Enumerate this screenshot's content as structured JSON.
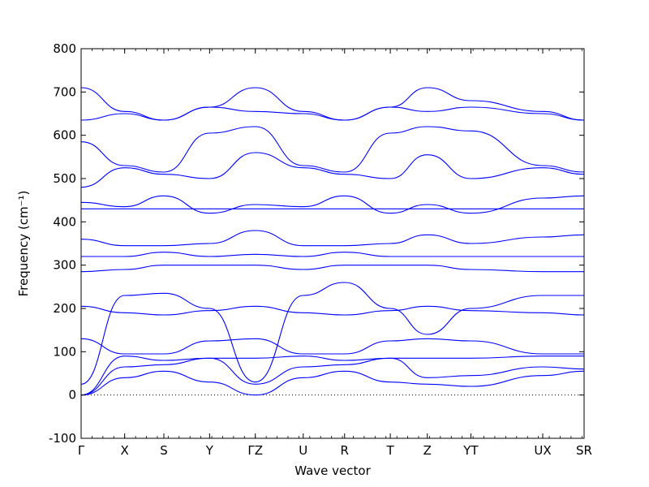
{
  "chart_data": {
    "type": "line",
    "title": "",
    "xlabel": "Wave vector",
    "ylabel": "Frequency (cm⁻¹)",
    "ylim": [
      -100,
      800
    ],
    "yticks": [
      -100,
      0,
      100,
      200,
      300,
      400,
      500,
      600,
      700,
      800
    ],
    "k_points": [
      "Γ",
      "X",
      "S",
      "Y",
      "ΓZ",
      "U",
      "R",
      "T",
      "Z",
      "YT",
      "UX",
      "SR"
    ],
    "k_positions": [
      0,
      1.0,
      1.9,
      2.95,
      4.0,
      5.1,
      6.05,
      7.1,
      7.95,
      8.95,
      10.6,
      11.55
    ],
    "zero_line": true,
    "line_color": "#0000ff",
    "grid": false,
    "legend": "none",
    "series": [
      {
        "x": [
          0,
          1.0,
          1.9,
          2.95,
          4.0,
          5.1,
          6.05,
          7.1,
          7.95,
          8.95,
          10.6,
          11.55
        ],
        "values": [
          0,
          40,
          55,
          30,
          0,
          40,
          55,
          30,
          25,
          20,
          45,
          55
        ]
      },
      {
        "x": [
          0,
          1.0,
          1.9,
          2.95,
          4.0,
          5.1,
          6.05,
          7.1,
          7.95,
          8.95,
          10.6,
          11.55
        ],
        "values": [
          0,
          65,
          70,
          85,
          25,
          65,
          70,
          85,
          40,
          45,
          65,
          60
        ]
      },
      {
        "x": [
          0,
          1.0,
          1.9,
          2.95,
          4.0,
          5.1,
          6.05,
          7.1,
          7.95,
          8.95,
          10.6,
          11.55
        ],
        "values": [
          0,
          90,
          80,
          85,
          85,
          90,
          80,
          85,
          85,
          85,
          90,
          90
        ]
      },
      {
        "x": [
          0,
          1.0,
          1.9,
          2.95,
          4.0,
          5.1,
          6.05,
          7.1,
          7.95,
          8.95,
          10.6,
          11.55
        ],
        "values": [
          130,
          95,
          95,
          125,
          130,
          95,
          95,
          125,
          130,
          125,
          95,
          95
        ]
      },
      {
        "x": [
          0,
          1.0,
          1.9,
          2.95,
          4.0,
          5.1,
          6.05,
          7.1,
          7.95,
          8.95,
          10.6,
          11.55
        ],
        "values": [
          205,
          190,
          185,
          195,
          205,
          190,
          185,
          195,
          205,
          195,
          190,
          185
        ]
      },
      {
        "x": [
          0,
          1.0,
          1.9,
          2.95,
          4.0,
          5.1,
          6.05,
          7.1,
          7.95,
          8.95,
          10.6,
          11.55
        ],
        "values": [
          25,
          230,
          235,
          200,
          30,
          230,
          260,
          200,
          140,
          200,
          230,
          230
        ]
      },
      {
        "x": [
          0,
          1.0,
          1.9,
          2.95,
          4.0,
          5.1,
          6.05,
          7.1,
          7.95,
          8.95,
          10.6,
          11.55
        ],
        "values": [
          285,
          290,
          300,
          300,
          300,
          290,
          300,
          300,
          300,
          290,
          285,
          285
        ]
      },
      {
        "x": [
          0,
          1.0,
          1.9,
          2.95,
          4.0,
          5.1,
          6.05,
          7.1,
          7.95,
          8.95,
          10.6,
          11.55
        ],
        "values": [
          320,
          320,
          330,
          320,
          325,
          320,
          330,
          320,
          320,
          320,
          320,
          320
        ]
      },
      {
        "x": [
          0,
          1.0,
          1.9,
          2.95,
          4.0,
          5.1,
          6.05,
          7.1,
          7.95,
          8.95,
          10.6,
          11.55
        ],
        "values": [
          360,
          345,
          345,
          350,
          380,
          345,
          345,
          350,
          370,
          350,
          365,
          370
        ]
      },
      {
        "x": [
          0,
          1.0,
          1.9,
          2.95,
          4.0,
          5.1,
          6.05,
          7.1,
          7.95,
          8.95,
          10.6,
          11.55
        ],
        "values": [
          430,
          430,
          430,
          430,
          430,
          430,
          430,
          430,
          430,
          430,
          430,
          430
        ]
      },
      {
        "x": [
          0,
          1.0,
          1.9,
          2.95,
          4.0,
          5.1,
          6.05,
          7.1,
          7.95,
          8.95,
          10.6,
          11.55
        ],
        "values": [
          445,
          435,
          460,
          420,
          440,
          435,
          460,
          420,
          440,
          420,
          455,
          460
        ]
      },
      {
        "x": [
          0,
          1.0,
          1.9,
          2.95,
          4.0,
          5.1,
          6.05,
          7.1,
          7.95,
          8.95,
          10.6,
          11.55
        ],
        "values": [
          480,
          525,
          510,
          500,
          560,
          525,
          510,
          500,
          555,
          500,
          525,
          510
        ]
      },
      {
        "x": [
          0,
          1.0,
          1.9,
          2.95,
          4.0,
          5.1,
          6.05,
          7.1,
          7.95,
          8.95,
          10.6,
          11.55
        ],
        "values": [
          585,
          530,
          515,
          605,
          620,
          530,
          515,
          605,
          620,
          610,
          530,
          515
        ]
      },
      {
        "x": [
          0,
          1.0,
          1.9,
          2.95,
          4.0,
          5.1,
          6.05,
          7.1,
          7.95,
          8.95,
          10.6,
          11.55
        ],
        "values": [
          635,
          650,
          635,
          665,
          655,
          650,
          635,
          665,
          655,
          665,
          650,
          635
        ]
      },
      {
        "x": [
          0,
          1.0,
          1.9,
          2.95,
          4.0,
          5.1,
          6.05,
          7.1,
          7.95,
          8.95,
          10.6,
          11.55
        ],
        "values": [
          710,
          655,
          635,
          665,
          710,
          655,
          635,
          665,
          710,
          680,
          655,
          635
        ]
      }
    ]
  }
}
